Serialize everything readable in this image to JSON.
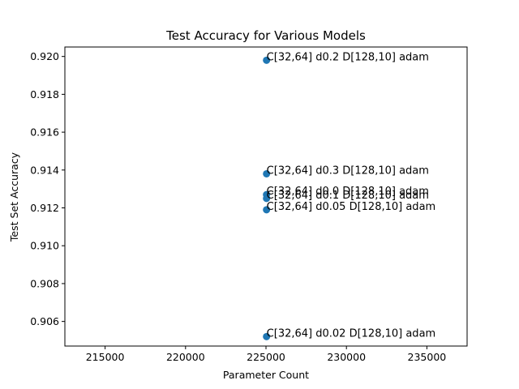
{
  "chart_data": {
    "type": "scatter",
    "title": "Test Accuracy for Various Models",
    "xlabel": "Parameter Count",
    "ylabel": "Test Set Accuracy",
    "xlim": [
      212500,
      237500
    ],
    "ylim": [
      0.9047,
      0.9205
    ],
    "xticks": [
      215000,
      220000,
      225000,
      230000,
      235000
    ],
    "yticks": [
      0.906,
      0.908,
      0.91,
      0.912,
      0.914,
      0.916,
      0.918,
      0.92
    ],
    "grid": false,
    "color": "#1f77b4",
    "points": [
      {
        "x": 225034,
        "y": 0.9198,
        "label": "C[32,64] d0.2 D[128,10] adam"
      },
      {
        "x": 225034,
        "y": 0.9138,
        "label": "C[32,64] d0.3 D[128,10] adam"
      },
      {
        "x": 225034,
        "y": 0.9127,
        "label": "C[32,64] d0.0 D[128,10] adam"
      },
      {
        "x": 225034,
        "y": 0.9125,
        "label": "C[32,64] d0.1 D[128,10] adam"
      },
      {
        "x": 225034,
        "y": 0.9119,
        "label": "C[32,64] d0.05 D[128,10] adam"
      },
      {
        "x": 225034,
        "y": 0.9052,
        "label": "C[32,64] d0.02 D[128,10] adam"
      }
    ]
  }
}
